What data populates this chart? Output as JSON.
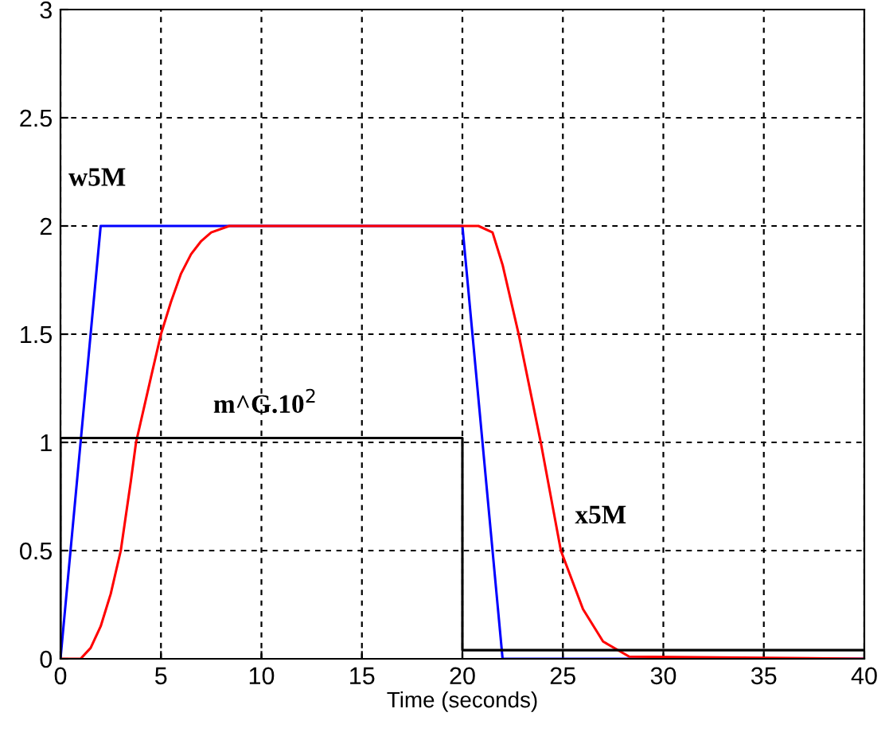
{
  "chart_data": {
    "type": "line",
    "xlabel": "Time (seconds)",
    "xlim": [
      0,
      40
    ],
    "ylim": [
      0,
      3
    ],
    "xticks": [
      0,
      5,
      10,
      15,
      20,
      25,
      30,
      35,
      40
    ],
    "yticks": [
      0,
      0.5,
      1,
      1.5,
      2,
      2.5,
      3
    ],
    "grid": true,
    "line_style": "solid",
    "marker": "none",
    "series": [
      {
        "color": "#0000ff",
        "x": [
          0,
          2,
          20,
          22,
          40
        ],
        "values": [
          0,
          2,
          2,
          0,
          0
        ]
      },
      {
        "color": "#ff0000",
        "x": [
          0,
          1,
          1.5,
          2,
          2.5,
          3,
          3.5,
          3.76,
          4.5,
          5,
          5.5,
          6,
          6.5,
          7,
          7.5,
          8.4,
          20.5,
          20.8,
          21.5,
          22,
          22.8,
          23.9,
          24.9,
          26,
          27,
          28.3,
          40
        ],
        "values": [
          0,
          0,
          0.05,
          0.15,
          0.3,
          0.5,
          0.82,
          1,
          1.3,
          1.5,
          1.65,
          1.78,
          1.87,
          1.93,
          1.97,
          2,
          2,
          2,
          1.97,
          1.82,
          1.5,
          1,
          0.5,
          0.23,
          0.08,
          0.01,
          0
        ]
      },
      {
        "type": "step",
        "color": "#000000",
        "x": [
          0,
          0,
          20,
          40
        ],
        "values": [
          0,
          1.02,
          0.04,
          0.04
        ]
      }
    ],
    "annotations": [
      "w5M",
      "m^G.10$^{2}$",
      "x5M"
    ]
  }
}
